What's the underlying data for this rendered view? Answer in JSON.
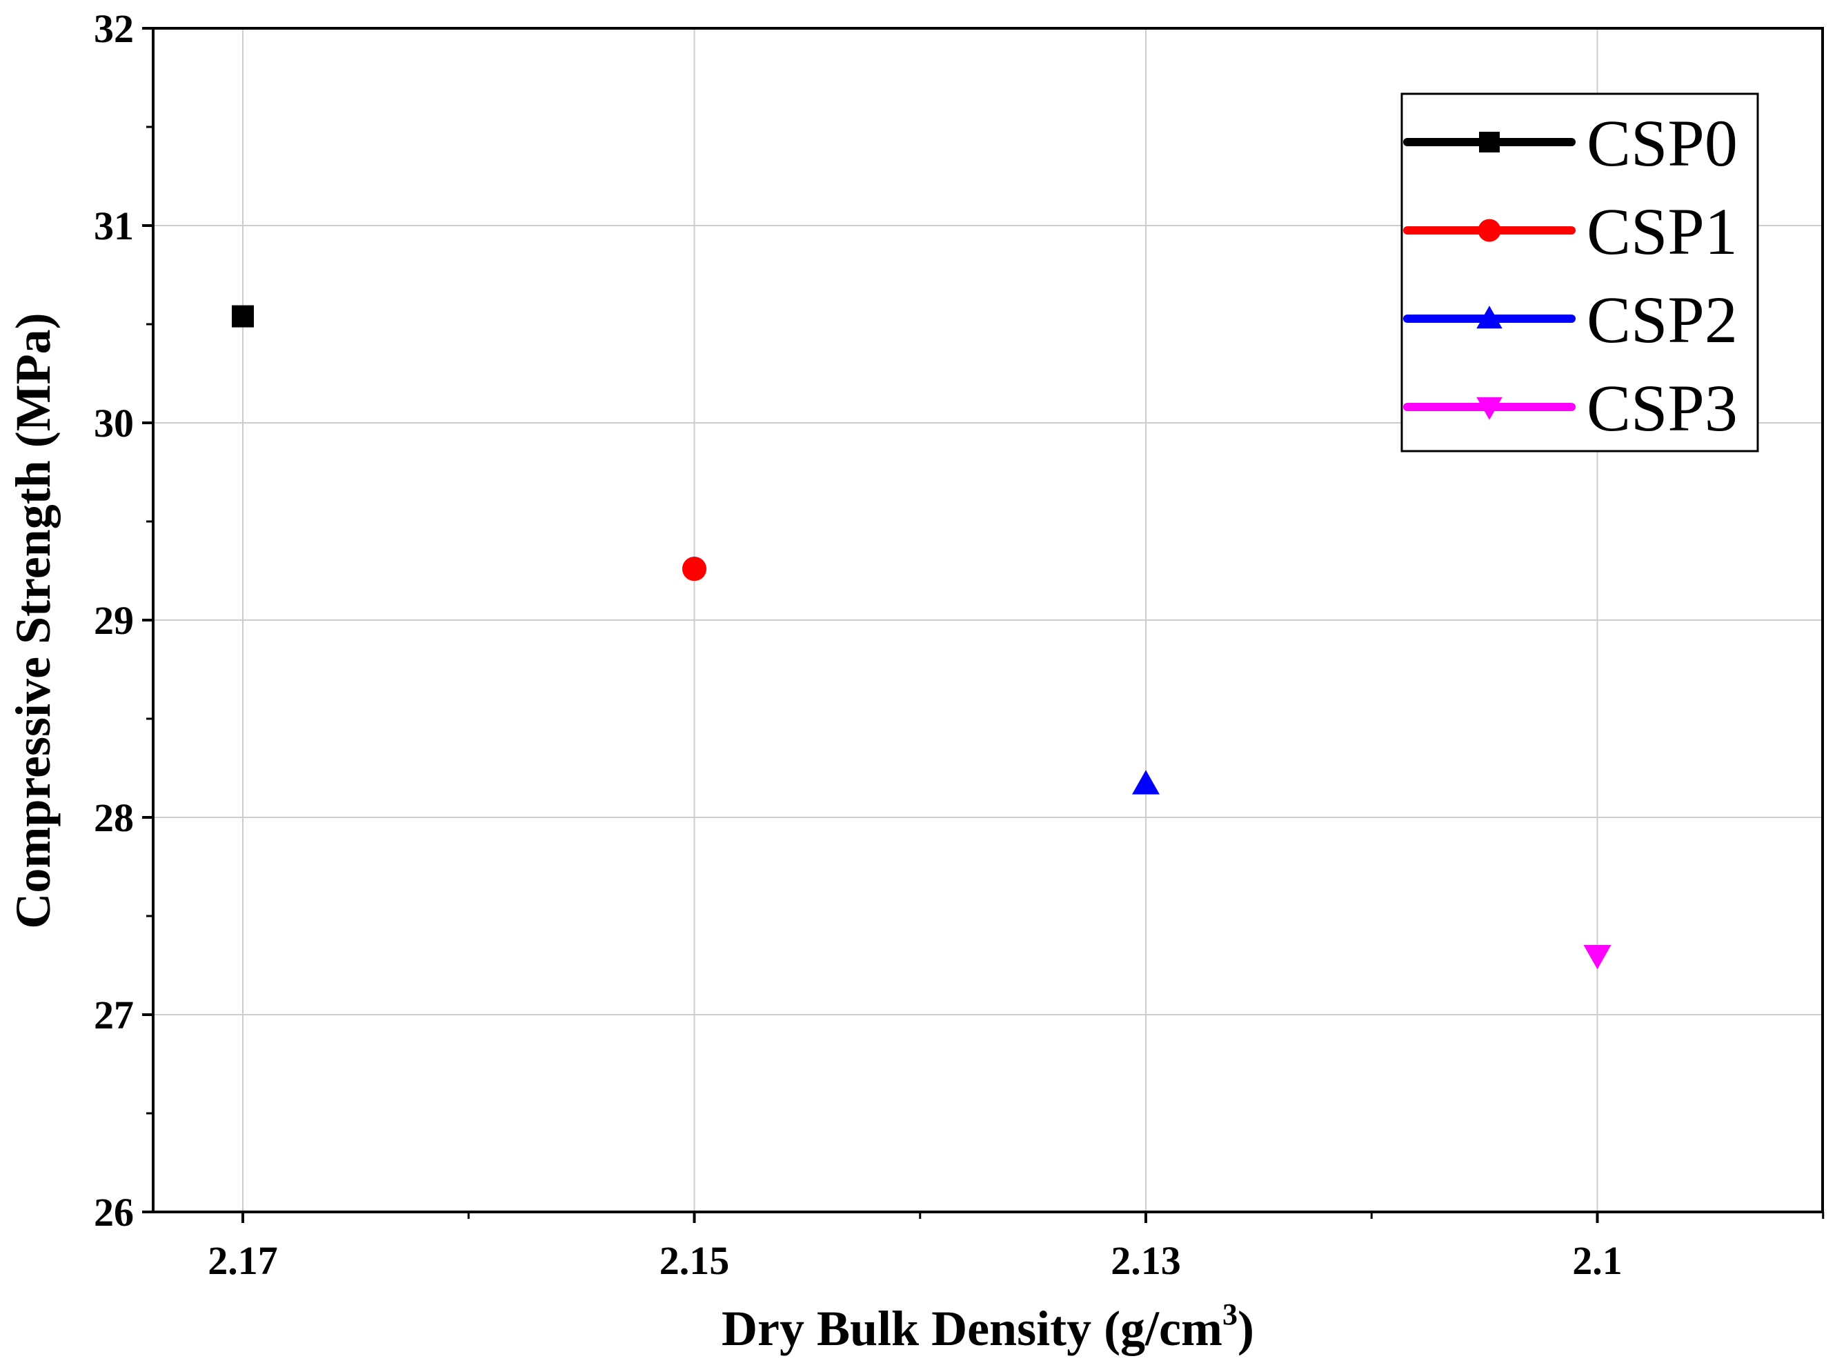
{
  "chart_data": {
    "type": "scatter",
    "title": "",
    "xlabel_main": "Dry Bulk Density (g/cm",
    "xlabel_sup": "3",
    "xlabel_close": ")",
    "ylabel": "Compressive Strength (MPa)",
    "x_categories": [
      "2.17",
      "2.15",
      "2.13",
      "2.1"
    ],
    "ylim": [
      26,
      32
    ],
    "y_ticks": [
      "26",
      "27",
      "28",
      "29",
      "30",
      "31",
      "32"
    ],
    "grid": true,
    "legend_position": "top-right",
    "series": [
      {
        "name": "CSP0",
        "x": "2.17",
        "y": 30.54,
        "color": "#000000",
        "marker": "square"
      },
      {
        "name": "CSP1",
        "x": "2.15",
        "y": 29.26,
        "color": "#ff0000",
        "marker": "circle"
      },
      {
        "name": "CSP2",
        "x": "2.13",
        "y": 28.17,
        "color": "#0000ff",
        "marker": "triangle-up"
      },
      {
        "name": "CSP3",
        "x": "2.1",
        "y": 27.3,
        "color": "#ff00ff",
        "marker": "triangle-down"
      }
    ]
  }
}
